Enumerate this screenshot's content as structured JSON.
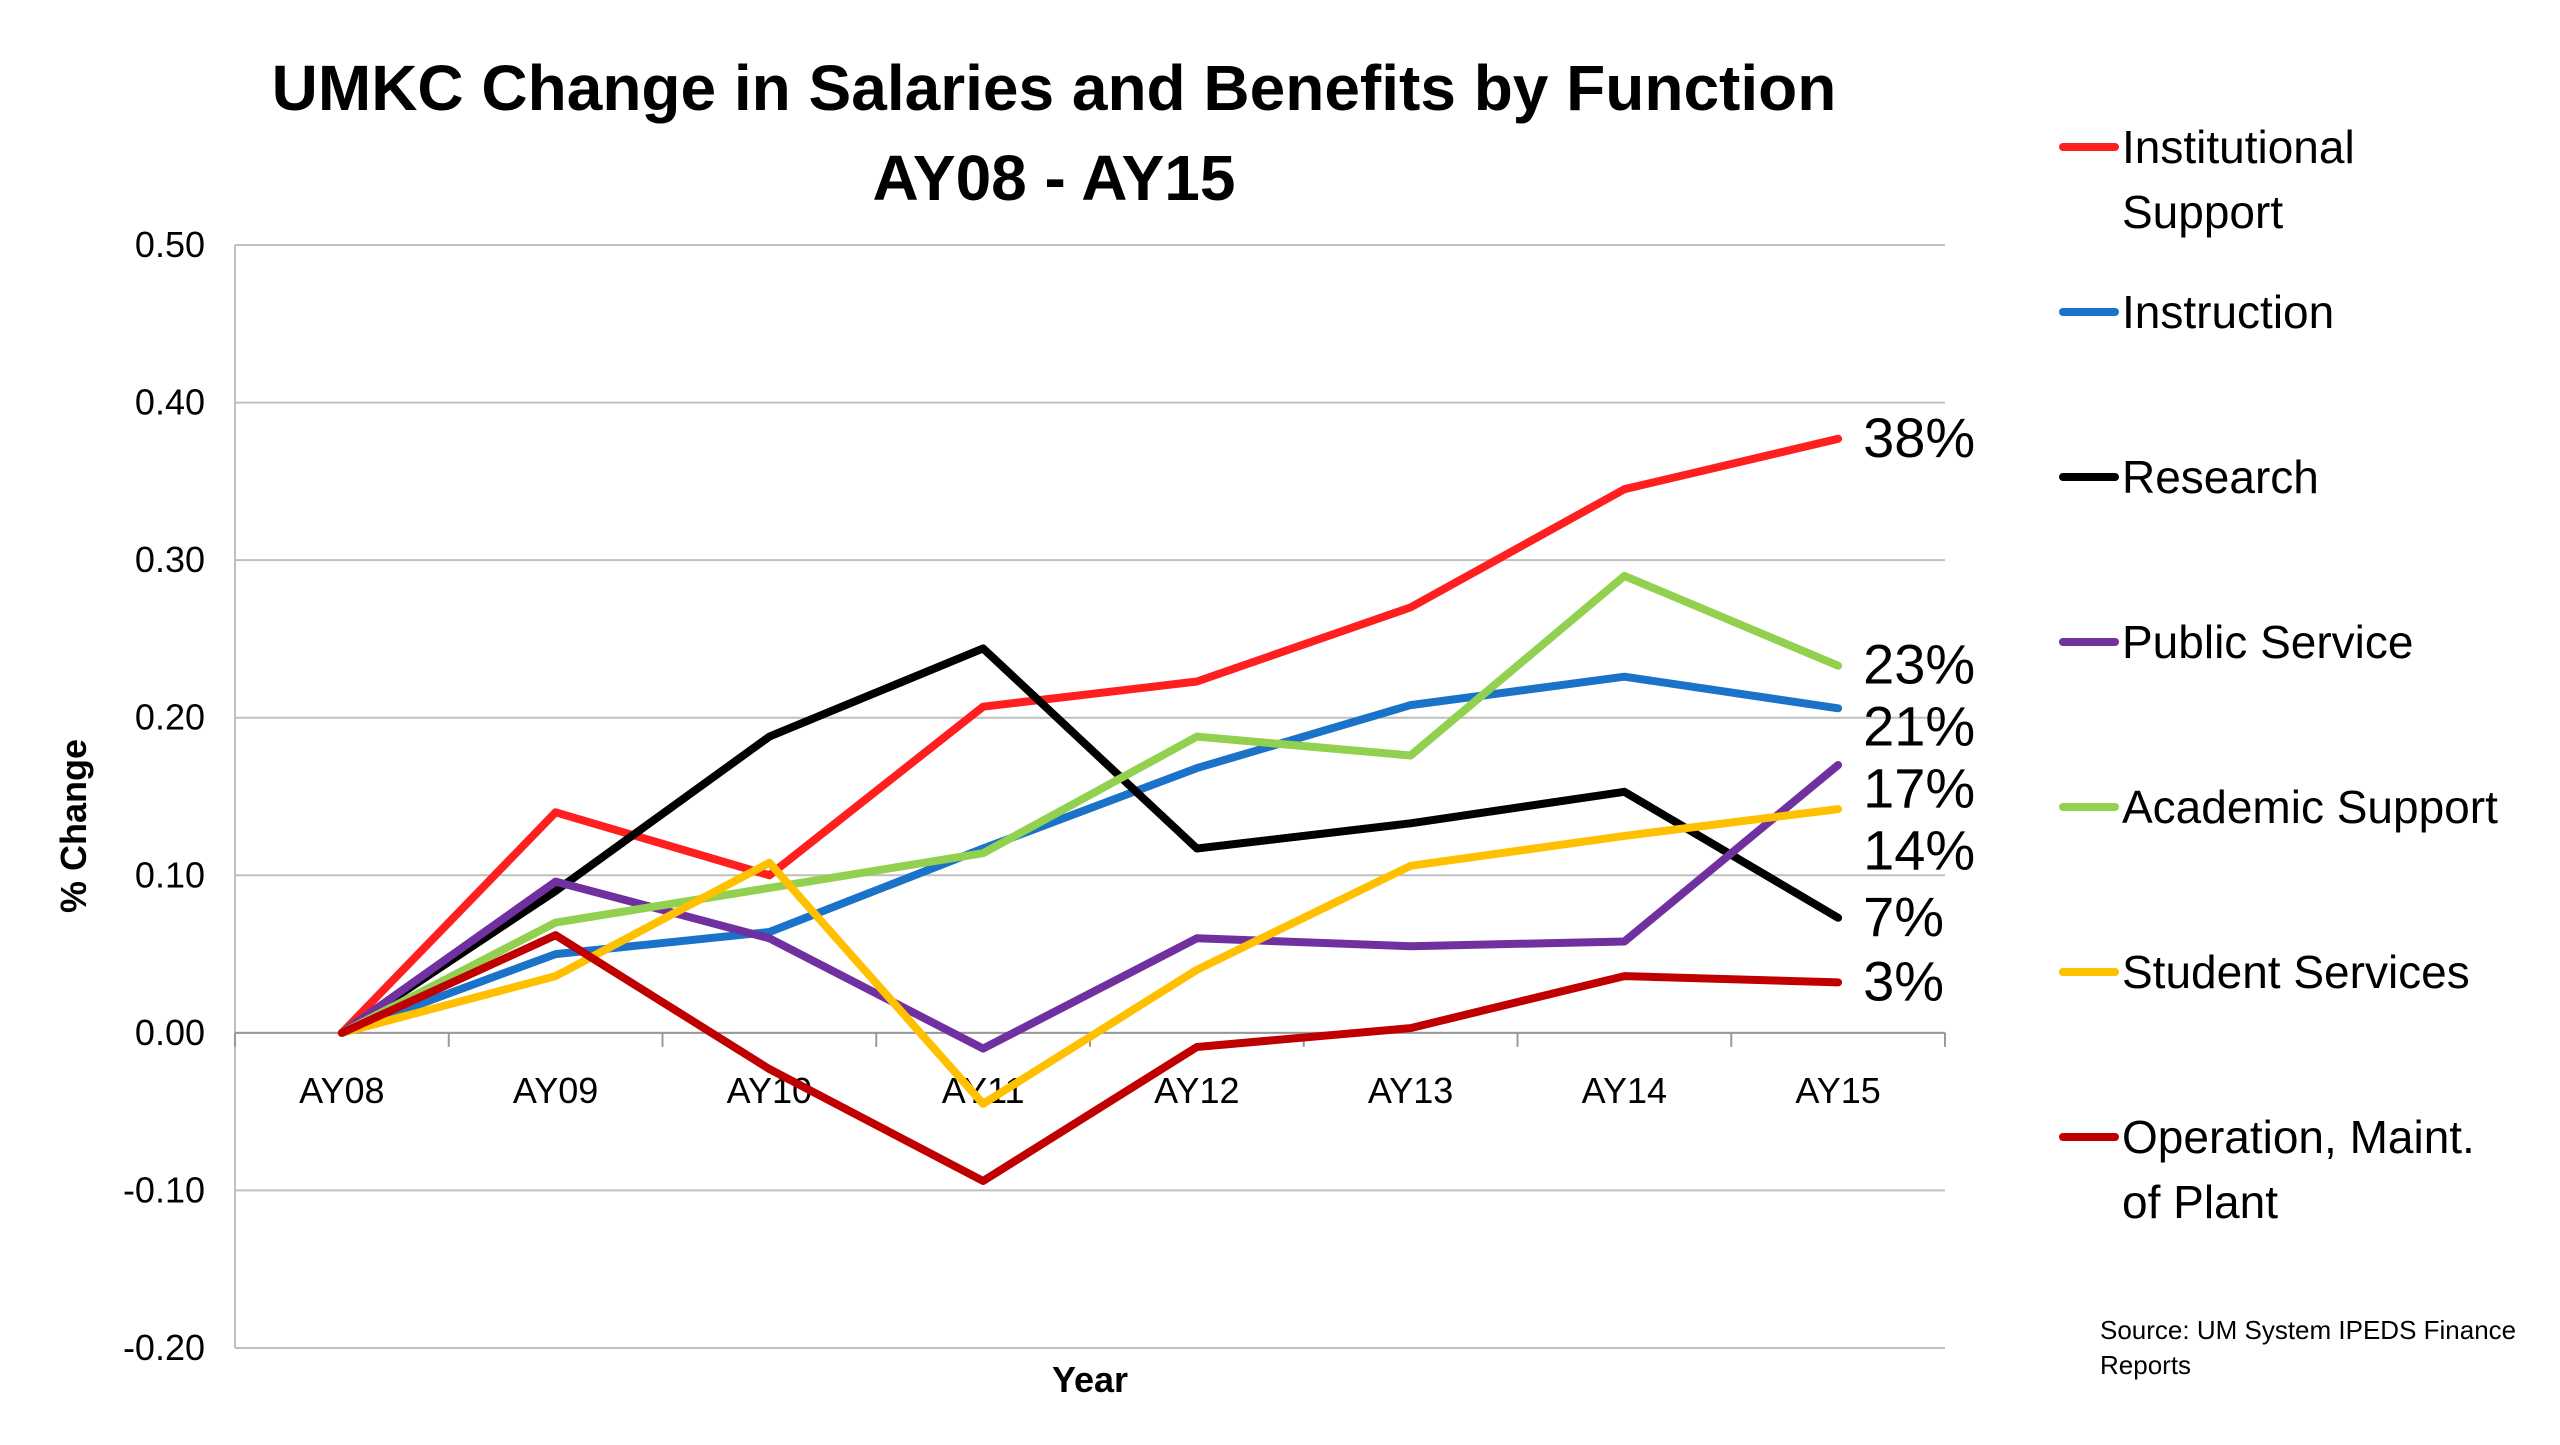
{
  "chart_data": {
    "type": "line",
    "title": [
      "UMKC Change in Salaries and Benefits by Function",
      "AY08 - AY15"
    ],
    "xlabel": "Year",
    "ylabel": "% Change",
    "categories": [
      "AY08",
      "AY09",
      "AY10",
      "AY11",
      "AY12",
      "AY13",
      "AY14",
      "AY15"
    ],
    "ylim": [
      -0.2,
      0.5
    ],
    "yticks": [
      0.5,
      0.4,
      0.3,
      0.2,
      0.1,
      0.0,
      -0.1,
      -0.2
    ],
    "ytick_labels": [
      "0.50",
      "0.40",
      "0.30",
      "0.20",
      "0.10",
      "0.00",
      "-0.10",
      "-0.20"
    ],
    "grid": true,
    "legend_position": "right",
    "series": [
      {
        "name": "Institutional Support",
        "legend_lines": [
          "Institutional",
          "Support"
        ],
        "color": "#ff1f1f",
        "values": [
          0.0,
          0.14,
          0.1,
          0.207,
          0.223,
          0.27,
          0.345,
          0.377
        ],
        "end_label": "38%"
      },
      {
        "name": "Instruction",
        "legend_lines": [
          "Instruction"
        ],
        "color": "#1a73c8",
        "values": [
          0.0,
          0.05,
          0.064,
          0.117,
          0.168,
          0.208,
          0.226,
          0.206
        ],
        "end_label": "21%"
      },
      {
        "name": "Research",
        "legend_lines": [
          "Research"
        ],
        "color": "#000000",
        "values": [
          0.0,
          0.09,
          0.188,
          0.244,
          0.117,
          0.133,
          0.153,
          0.073
        ],
        "end_label": "7%"
      },
      {
        "name": "Public Service",
        "legend_lines": [
          "Public Service"
        ],
        "color": "#7030a0",
        "values": [
          0.0,
          0.096,
          0.06,
          -0.01,
          0.06,
          0.055,
          0.058,
          0.17
        ],
        "end_label": "17%"
      },
      {
        "name": "Academic Support",
        "legend_lines": [
          "Academic Support"
        ],
        "color": "#92d050",
        "values": [
          0.0,
          0.07,
          0.092,
          0.114,
          0.188,
          0.176,
          0.29,
          0.233
        ],
        "end_label": "23%"
      },
      {
        "name": "Student Services",
        "legend_lines": [
          "Student Services"
        ],
        "color": "#ffc000",
        "values": [
          0.0,
          0.036,
          0.108,
          -0.045,
          0.04,
          0.106,
          0.125,
          0.142
        ],
        "end_label": "14%"
      },
      {
        "name": "Operation, Maint. of Plant",
        "legend_lines": [
          "Operation, Maint.",
          "of Plant"
        ],
        "color": "#c00000",
        "values": [
          0.0,
          0.062,
          -0.023,
          -0.094,
          -0.009,
          0.003,
          0.036,
          0.032
        ],
        "end_label": "3%"
      }
    ],
    "source": [
      "Source: UM System IPEDS Finance",
      "Reports"
    ]
  }
}
